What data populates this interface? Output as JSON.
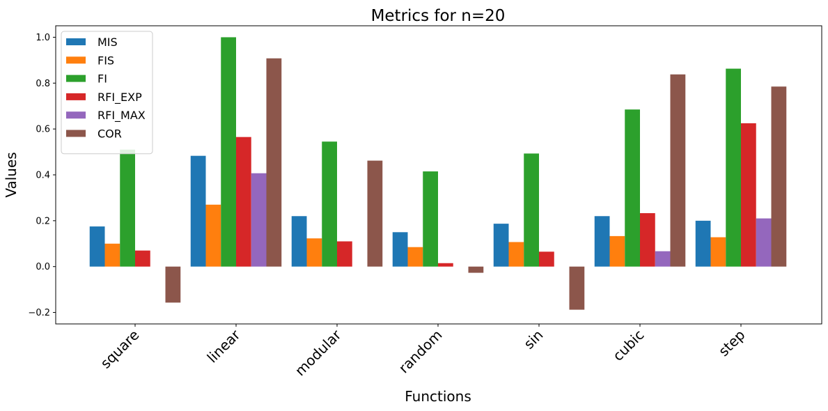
{
  "chart_data": {
    "type": "bar",
    "title": "Metrics for n=20",
    "xlabel": "Functions",
    "ylabel": "Values",
    "ylim": [
      -0.25,
      1.05
    ],
    "yticks": [
      -0.2,
      0.0,
      0.2,
      0.4,
      0.6,
      0.8,
      1.0
    ],
    "ytick_labels": [
      "−0.2",
      "0.0",
      "0.2",
      "0.4",
      "0.6",
      "0.8",
      "1.0"
    ],
    "categories": [
      "square",
      "linear",
      "modular",
      "random",
      "sin",
      "cubic",
      "step"
    ],
    "legend_position": "top-left",
    "grid": false,
    "series": [
      {
        "name": "MIS",
        "color": "#1f77b4",
        "values": [
          0.175,
          0.483,
          0.22,
          0.15,
          0.187,
          0.22,
          0.2
        ]
      },
      {
        "name": "FIS",
        "color": "#ff7f0e",
        "values": [
          0.1,
          0.27,
          0.123,
          0.085,
          0.107,
          0.133,
          0.128
        ]
      },
      {
        "name": "FI",
        "color": "#2ca02c",
        "values": [
          0.51,
          1.0,
          0.545,
          0.415,
          0.493,
          0.685,
          0.863
        ]
      },
      {
        "name": "RFI_EXP",
        "color": "#d62728",
        "values": [
          0.07,
          0.565,
          0.11,
          0.015,
          0.065,
          0.233,
          0.625
        ]
      },
      {
        "name": "RFI_MAX",
        "color": "#9467bd",
        "values": [
          0.0,
          0.407,
          0.0,
          0.0,
          0.0,
          0.067,
          0.21
        ]
      },
      {
        "name": "COR",
        "color": "#8c564b",
        "values": [
          -0.157,
          0.908,
          0.462,
          -0.027,
          -0.188,
          0.838,
          0.785
        ]
      }
    ]
  }
}
